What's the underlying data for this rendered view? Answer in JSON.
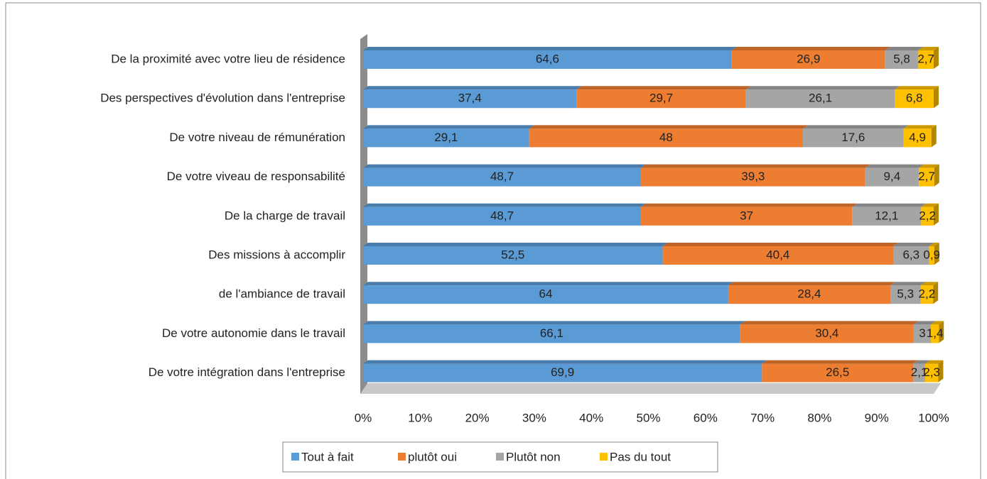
{
  "chart_data": {
    "type": "bar",
    "orientation": "horizontal",
    "stacked": true,
    "categories": [
      "De la proximité avec votre lieu de résidence",
      "Des perspectives d'évolution dans l'entreprise",
      "De votre niveau de rémunération",
      "De votre viveau de responsabilité",
      "De la charge de travail",
      "Des missions à accomplir",
      "de l'ambiance de travail",
      "De votre autonomie dans le travail",
      "De votre intégration dans l'entreprise"
    ],
    "series": [
      {
        "name": "Tout à fait",
        "color": "#5b9bd5",
        "values": [
          64.6,
          37.4,
          29.1,
          48.7,
          48.7,
          52.5,
          64,
          66.1,
          69.9
        ],
        "value_labels": [
          "64,6",
          "37,4",
          "29,1",
          "48,7",
          "48,7",
          "52,5",
          "64",
          "66,1",
          "69,9"
        ]
      },
      {
        "name": "plutôt oui",
        "color": "#ed7d31",
        "values": [
          26.9,
          29.7,
          48,
          39.3,
          37,
          40.4,
          28.4,
          30.4,
          26.5
        ],
        "value_labels": [
          "26,9",
          "29,7",
          "48",
          "39,3",
          "37",
          "40,4",
          "28,4",
          "30,4",
          "26,5"
        ]
      },
      {
        "name": "Plutôt non",
        "color": "#a5a5a5",
        "values": [
          5.8,
          26.1,
          17.6,
          9.4,
          12.1,
          6.3,
          5.3,
          3,
          2.1
        ],
        "value_labels": [
          "5,8",
          "26,1",
          "17,6",
          "9,4",
          "12,1",
          "6,3",
          "5,3",
          "3",
          "2,1"
        ]
      },
      {
        "name": "Pas du tout",
        "color": "#ffc000",
        "values": [
          2.7,
          6.8,
          4.9,
          2.7,
          2.2,
          0.9,
          2.2,
          1.4,
          2.3
        ],
        "value_labels": [
          "2,7",
          "6,8",
          "4,9",
          "2,7",
          "2,2",
          "0,9",
          "2,2",
          "1,4",
          "2,3"
        ]
      }
    ],
    "xlim": [
      0,
      100
    ],
    "xticks": [
      {
        "value": 0,
        "label": "0%"
      },
      {
        "value": 10,
        "label": "10%"
      },
      {
        "value": 20,
        "label": "20%"
      },
      {
        "value": 30,
        "label": "30%"
      },
      {
        "value": 40,
        "label": "40%"
      },
      {
        "value": 50,
        "label": "50%"
      },
      {
        "value": 60,
        "label": "60%"
      },
      {
        "value": 70,
        "label": "70%"
      },
      {
        "value": 80,
        "label": "80%"
      },
      {
        "value": 90,
        "label": "90%"
      },
      {
        "value": 100,
        "label": "100%"
      }
    ],
    "legend": "bottom"
  }
}
